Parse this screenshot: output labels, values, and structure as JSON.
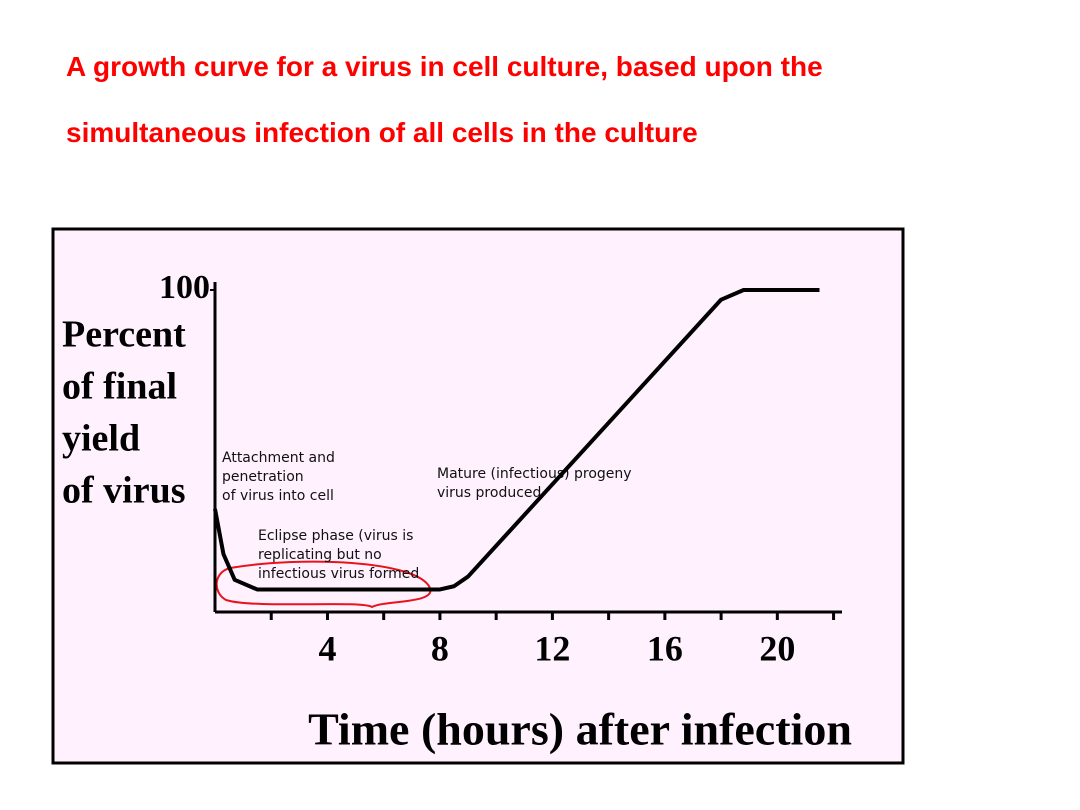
{
  "chart_data": {
    "type": "line",
    "title": "A growth curve for a virus in cell culture, based upon the simultaneous infection of all cells in the culture",
    "ylabel": [
      "Percent",
      "of final",
      "yield",
      "of virus"
    ],
    "xlabel": "Time (hours) after infection",
    "x": [
      0,
      0.3,
      0.7,
      1.5,
      3,
      5,
      8,
      8.5,
      9,
      18,
      18.8,
      21.5
    ],
    "values": [
      32,
      18,
      10,
      7,
      7,
      7,
      7,
      8,
      11,
      97,
      100,
      100
    ],
    "color": "#000000",
    "xlim": [
      0,
      22.3
    ],
    "xticks": [
      4,
      8,
      12,
      16,
      20
    ],
    "x_minor_ticks": [
      2,
      6,
      10,
      14,
      18,
      22
    ],
    "ylim": [
      0,
      100
    ],
    "yticks": [
      100
    ],
    "annotations": [
      [
        "Attachment and",
        "penetration",
        "of virus into cell"
      ],
      [
        "Eclipse phase (virus is",
        "replicating but no",
        "infectious virus formed"
      ],
      [
        "Mature (infectious) progeny",
        "virus produced"
      ]
    ]
  }
}
